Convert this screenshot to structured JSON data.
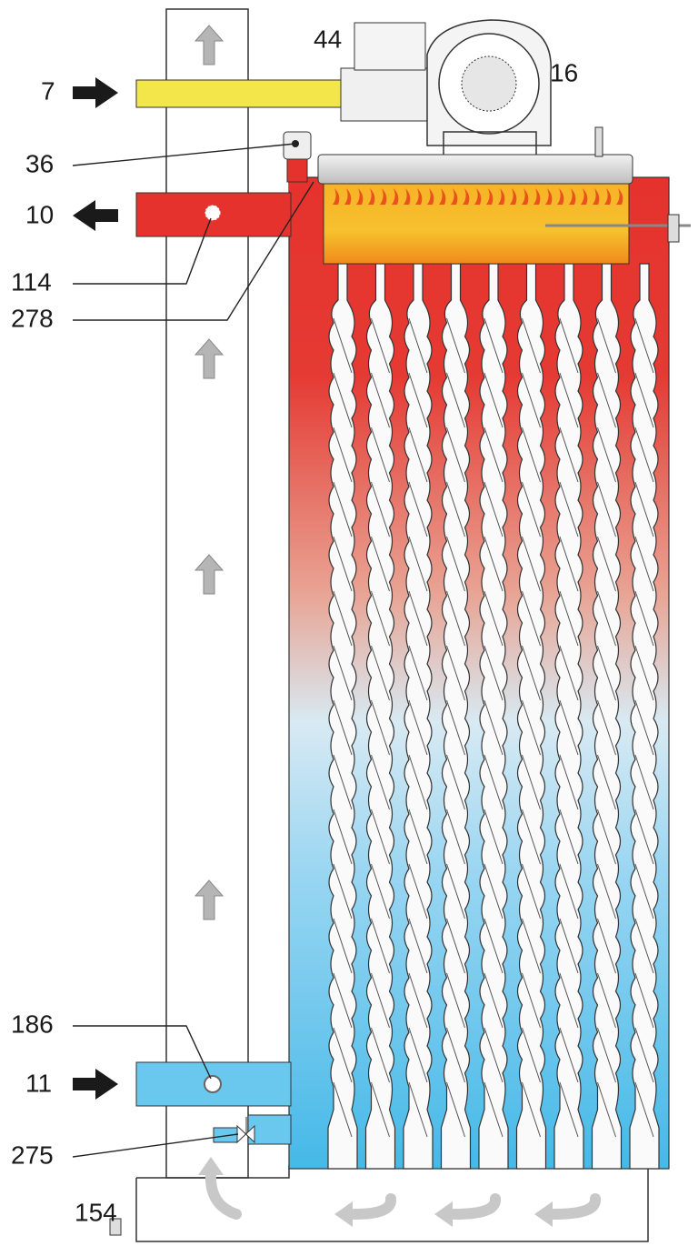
{
  "callouts": [
    "44",
    "7",
    "16",
    "36",
    "10",
    "114",
    "278",
    "186",
    "11",
    "275",
    "154"
  ]
}
